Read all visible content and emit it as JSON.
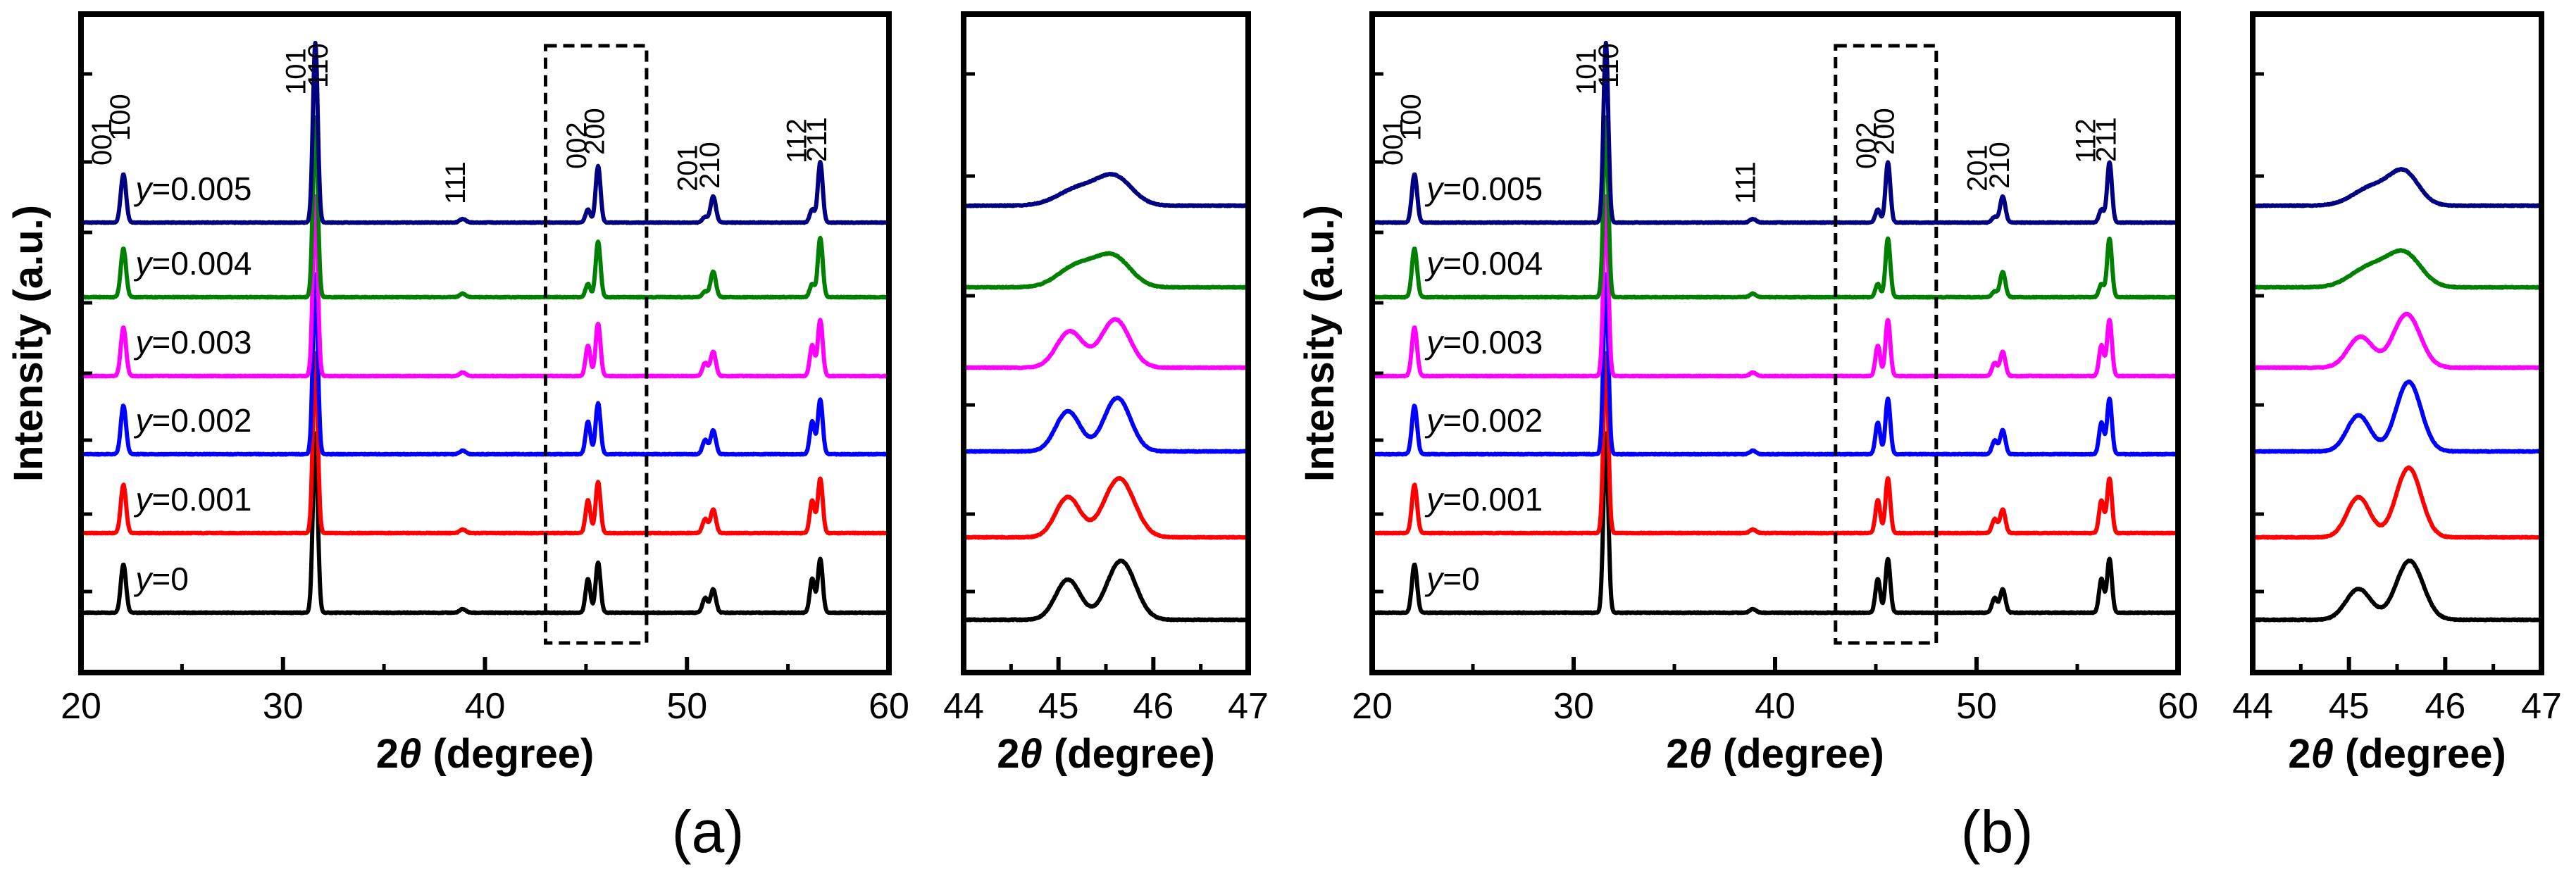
{
  "figure": {
    "panels": [
      {
        "label": "(a)",
        "series_labels": [
          "y=0",
          "y=0.001",
          "y=0.002",
          "y=0.003",
          "y=0.004",
          "y=0.005"
        ]
      },
      {
        "label": "(b)",
        "series_labels": [
          "y=0",
          "y=0.001",
          "y=0.002",
          "y=0.003",
          "y=0.004",
          "y=0.005"
        ]
      }
    ]
  },
  "chart_data": [
    {
      "type": "line",
      "panel": "(a)",
      "subplot": "main",
      "xlabel": "2θ (degree)",
      "ylabel": "Intensity (a.u.)",
      "xlim": [
        20,
        60
      ],
      "xticks": [
        20,
        30,
        40,
        50,
        60
      ],
      "inset_box_x": [
        43,
        48
      ],
      "peaks": [
        {
          "pos": 22.1,
          "h": 0.27,
          "w": 0.13
        },
        {
          "pos": 31.6,
          "h": 1.0,
          "w": 0.12
        },
        {
          "pos": 38.9,
          "h": 0.02,
          "w": 0.15
        },
        {
          "pos": 45.1,
          "h": 0.21,
          "w": 0.12
        },
        {
          "pos": 45.6,
          "h": 0.28,
          "w": 0.12
        },
        {
          "pos": 50.9,
          "h": 0.09,
          "w": 0.13
        },
        {
          "pos": 51.3,
          "h": 0.13,
          "w": 0.13
        },
        {
          "pos": 56.2,
          "h": 0.21,
          "w": 0.12
        },
        {
          "pos": 56.6,
          "h": 0.3,
          "w": 0.12
        }
      ],
      "hkl_labels": [
        {
          "text": "001",
          "x": 21.5
        },
        {
          "text": "100",
          "x": 22.4
        },
        {
          "text": "101",
          "x": 31.1
        },
        {
          "text": "110",
          "x": 32.2
        },
        {
          "text": "111",
          "x": 39.0
        },
        {
          "text": "002",
          "x": 45.0
        },
        {
          "text": "200",
          "x": 45.9
        },
        {
          "text": "201",
          "x": 50.5
        },
        {
          "text": "210",
          "x": 51.6
        },
        {
          "text": "112",
          "x": 55.9
        },
        {
          "text": "211",
          "x": 56.9
        }
      ],
      "series": [
        {
          "name": "y=0",
          "color": "#000000",
          "split": 0.5
        },
        {
          "name": "y=0.001",
          "color": "#ff0000",
          "split": 0.45
        },
        {
          "name": "y=0.002",
          "color": "#0000ff",
          "split": 0.45
        },
        {
          "name": "y=0.003",
          "color": "#ff00ff",
          "split": 0.35
        },
        {
          "name": "y=0.004",
          "color": "#008000",
          "split": 0.15
        },
        {
          "name": "y=0.005",
          "color": "#000080",
          "split": 0.1
        }
      ]
    },
    {
      "type": "line",
      "panel": "(a)",
      "subplot": "inset",
      "xlabel": "2θ (degree)",
      "xlim": [
        44,
        47
      ],
      "xticks": [
        44,
        45,
        46,
        47
      ],
      "series": [
        {
          "name": "y=0",
          "color": "#000000",
          "peaks": [
            {
              "pos": 45.1,
              "h": 0.3,
              "w": 0.13
            },
            {
              "pos": 45.66,
              "h": 0.44,
              "w": 0.15
            }
          ]
        },
        {
          "name": "y=0.001",
          "color": "#ff0000",
          "peaks": [
            {
              "pos": 45.1,
              "h": 0.3,
              "w": 0.13
            },
            {
              "pos": 45.64,
              "h": 0.44,
              "w": 0.16
            }
          ]
        },
        {
          "name": "y=0.002",
          "color": "#0000ff",
          "peaks": [
            {
              "pos": 45.1,
              "h": 0.3,
              "w": 0.13
            },
            {
              "pos": 45.62,
              "h": 0.4,
              "w": 0.14
            }
          ]
        },
        {
          "name": "y=0.003",
          "color": "#ff00ff",
          "peaks": [
            {
              "pos": 45.12,
              "h": 0.27,
              "w": 0.14
            },
            {
              "pos": 45.6,
              "h": 0.36,
              "w": 0.15
            }
          ]
        },
        {
          "name": "y=0.004",
          "color": "#008000",
          "peaks": [
            {
              "pos": 45.2,
              "h": 0.16,
              "w": 0.2
            },
            {
              "pos": 45.58,
              "h": 0.22,
              "w": 0.18
            }
          ]
        },
        {
          "name": "y=0.005",
          "color": "#000080",
          "peaks": [
            {
              "pos": 45.22,
              "h": 0.13,
              "w": 0.22
            },
            {
              "pos": 45.6,
              "h": 0.2,
              "w": 0.18
            }
          ]
        }
      ]
    },
    {
      "type": "line",
      "panel": "(b)",
      "subplot": "main",
      "xlabel": "2θ (degree)",
      "ylabel": "Intensity (a.u.)",
      "xlim": [
        20,
        60
      ],
      "xticks": [
        20,
        30,
        40,
        50,
        60
      ],
      "inset_box_x": [
        43,
        48
      ],
      "peaks": [
        {
          "pos": 22.1,
          "h": 0.27,
          "w": 0.13
        },
        {
          "pos": 31.6,
          "h": 1.0,
          "w": 0.12
        },
        {
          "pos": 38.9,
          "h": 0.02,
          "w": 0.15
        },
        {
          "pos": 45.1,
          "h": 0.21,
          "w": 0.12
        },
        {
          "pos": 45.6,
          "h": 0.3,
          "w": 0.12
        },
        {
          "pos": 50.9,
          "h": 0.09,
          "w": 0.13
        },
        {
          "pos": 51.3,
          "h": 0.13,
          "w": 0.13
        },
        {
          "pos": 56.2,
          "h": 0.21,
          "w": 0.12
        },
        {
          "pos": 56.6,
          "h": 0.3,
          "w": 0.12
        }
      ],
      "hkl_labels": [
        {
          "text": "001",
          "x": 21.5
        },
        {
          "text": "100",
          "x": 22.4
        },
        {
          "text": "101",
          "x": 31.1
        },
        {
          "text": "110",
          "x": 32.2
        },
        {
          "text": "111",
          "x": 39.0
        },
        {
          "text": "002",
          "x": 45.0
        },
        {
          "text": "200",
          "x": 45.9
        },
        {
          "text": "201",
          "x": 50.5
        },
        {
          "text": "210",
          "x": 51.6
        },
        {
          "text": "112",
          "x": 55.9
        },
        {
          "text": "211",
          "x": 56.9
        }
      ],
      "series": [
        {
          "name": "y=0",
          "color": "#000000",
          "split": 0.5
        },
        {
          "name": "y=0.001",
          "color": "#ff0000",
          "split": 0.45
        },
        {
          "name": "y=0.002",
          "color": "#0000ff",
          "split": 0.4
        },
        {
          "name": "y=0.003",
          "color": "#ff00ff",
          "split": 0.35
        },
        {
          "name": "y=0.004",
          "color": "#008000",
          "split": 0.2
        },
        {
          "name": "y=0.005",
          "color": "#000080",
          "split": 0.12
        }
      ]
    },
    {
      "type": "line",
      "panel": "(b)",
      "subplot": "inset",
      "xlabel": "2θ (degree)",
      "xlim": [
        44,
        47
      ],
      "xticks": [
        44,
        45,
        46,
        47
      ],
      "series": [
        {
          "name": "y=0",
          "color": "#000000",
          "peaks": [
            {
              "pos": 45.1,
              "h": 0.23,
              "w": 0.13
            },
            {
              "pos": 45.63,
              "h": 0.44,
              "w": 0.14
            }
          ]
        },
        {
          "name": "y=0.001",
          "color": "#ff0000",
          "peaks": [
            {
              "pos": 45.1,
              "h": 0.3,
              "w": 0.12
            },
            {
              "pos": 45.62,
              "h": 0.52,
              "w": 0.13
            }
          ]
        },
        {
          "name": "y=0.002",
          "color": "#0000ff",
          "peaks": [
            {
              "pos": 45.1,
              "h": 0.27,
              "w": 0.12
            },
            {
              "pos": 45.62,
              "h": 0.52,
              "w": 0.13
            }
          ]
        },
        {
          "name": "y=0.003",
          "color": "#ff00ff",
          "peaks": [
            {
              "pos": 45.12,
              "h": 0.23,
              "w": 0.13
            },
            {
              "pos": 45.6,
              "h": 0.4,
              "w": 0.14
            }
          ]
        },
        {
          "name": "y=0.004",
          "color": "#008000",
          "peaks": [
            {
              "pos": 45.22,
              "h": 0.15,
              "w": 0.2
            },
            {
              "pos": 45.58,
              "h": 0.24,
              "w": 0.17
            }
          ]
        },
        {
          "name": "y=0.005",
          "color": "#000080",
          "peaks": [
            {
              "pos": 45.25,
              "h": 0.14,
              "w": 0.2
            },
            {
              "pos": 45.58,
              "h": 0.23,
              "w": 0.15
            }
          ]
        }
      ]
    }
  ]
}
